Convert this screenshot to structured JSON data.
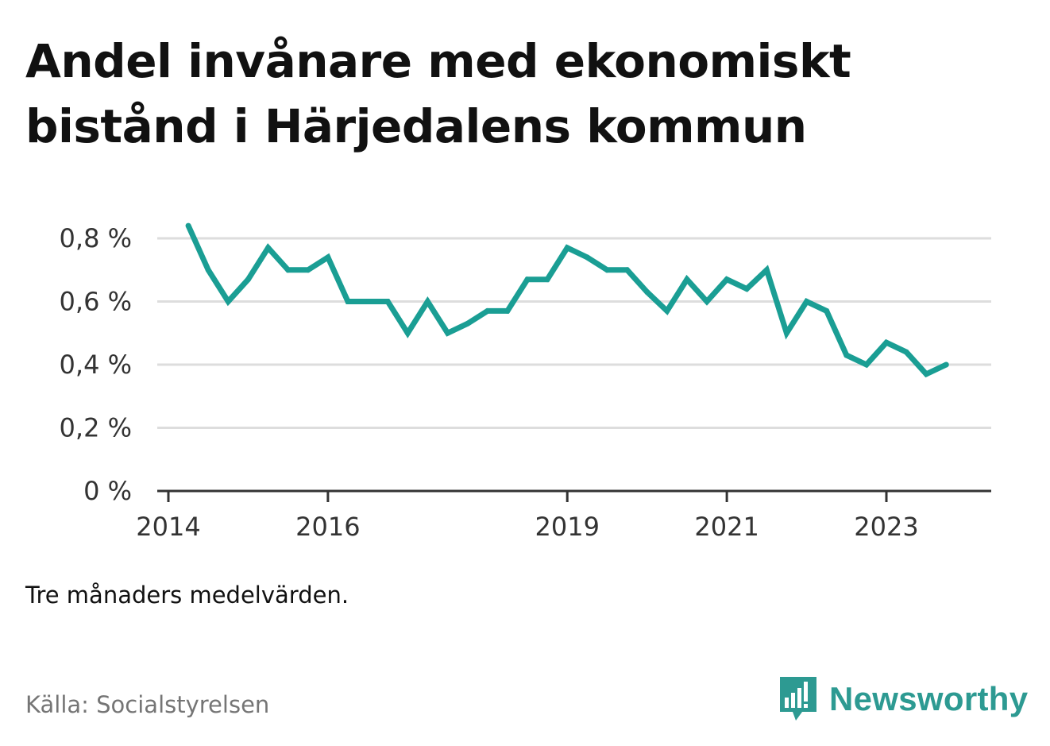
{
  "title": "Andel invånare med ekonomiskt bistånd i Härjedalens kommun",
  "note": "Tre månaders medelvärden.",
  "source": "Källa: Socialstyrelsen",
  "brand": {
    "name": "Newsworthy",
    "icon": "newsworthy-logo-icon"
  },
  "colors": {
    "line": "#1a9e94",
    "grid": "#dddddd",
    "axis": "#333333",
    "brand": "#2d9a92"
  },
  "chart_data": {
    "type": "line",
    "title": "Andel invånare med ekonomiskt bistånd i Härjedalens kommun",
    "xlabel": "",
    "ylabel": "",
    "x_ticks": [
      "2014",
      "2016",
      "2019",
      "2021",
      "2023"
    ],
    "y_ticks": [
      "0 %",
      "0,2 %",
      "0,4 %",
      "0,6 %",
      "0,8 %"
    ],
    "ylim": [
      0,
      0.8
    ],
    "grid": true,
    "series": [
      {
        "x": [
          "2014-04",
          "2014-07",
          "2014-10",
          "2015-01",
          "2015-04",
          "2015-07",
          "2015-10",
          "2016-01",
          "2016-04",
          "2016-07",
          "2016-10",
          "2017-01",
          "2017-04",
          "2017-07",
          "2017-10",
          "2018-01",
          "2018-04",
          "2018-07",
          "2018-10",
          "2019-01",
          "2019-04",
          "2019-07",
          "2019-10",
          "2020-01",
          "2020-04",
          "2020-07",
          "2020-10",
          "2021-01",
          "2021-04",
          "2021-07",
          "2021-10",
          "2022-01",
          "2022-04",
          "2022-07",
          "2022-10",
          "2023-01",
          "2023-04",
          "2023-07",
          "2023-10"
        ],
        "values": [
          0.84,
          0.7,
          0.6,
          0.67,
          0.77,
          0.7,
          0.7,
          0.74,
          0.6,
          0.6,
          0.6,
          0.5,
          0.6,
          0.5,
          0.53,
          0.57,
          0.57,
          0.67,
          0.67,
          0.77,
          0.74,
          0.7,
          0.7,
          0.63,
          0.57,
          0.67,
          0.6,
          0.67,
          0.64,
          0.7,
          0.5,
          0.6,
          0.57,
          0.43,
          0.4,
          0.47,
          0.44,
          0.37,
          0.4
        ]
      }
    ]
  }
}
